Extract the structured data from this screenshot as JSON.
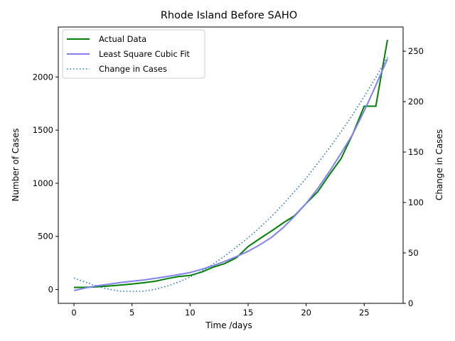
{
  "chart_data": {
    "type": "line",
    "title": "Rhode Island Before SAHO",
    "xlabel": "Time /days",
    "ylabel_left": "Number of Cases",
    "ylabel_right": "Change in Cases",
    "xlim": [
      -1.35,
      28.35
    ],
    "ylim_left": [
      -130,
      2470
    ],
    "ylim_right": [
      0,
      274
    ],
    "xticks": [
      "0",
      "5",
      "10",
      "15",
      "20",
      "25"
    ],
    "yticks_left": [
      "0",
      "500",
      "1000",
      "1500",
      "2000"
    ],
    "yticks_right": [
      "0",
      "50",
      "100",
      "150",
      "200",
      "250"
    ],
    "grid": false,
    "legend_position": "top-left",
    "colors": {
      "actual": "#008000",
      "fit": "#8080f0",
      "change": "#1f77b4"
    },
    "series": [
      {
        "name": "Actual Data",
        "axis": "left",
        "style": "solid",
        "x": [
          0,
          1,
          2,
          3,
          4,
          5,
          6,
          7,
          8,
          9,
          10,
          11,
          12,
          13,
          14,
          15,
          16,
          17,
          18,
          19,
          20,
          21,
          22,
          23,
          24,
          25,
          26,
          27
        ],
        "values": [
          20,
          21,
          25,
          33,
          42,
          52,
          64,
          78,
          102,
          122,
          132,
          165,
          210,
          245,
          300,
          405,
          478,
          550,
          625,
          695,
          810,
          920,
          1080,
          1230,
          1460,
          1725,
          1725,
          2350
        ]
      },
      {
        "name": "Least Square Cubic Fit",
        "axis": "left",
        "style": "solid",
        "x": [
          0,
          1,
          2,
          3,
          4,
          5,
          6,
          7,
          8,
          9,
          10,
          11,
          12,
          13,
          14,
          15,
          16,
          17,
          18,
          19,
          20,
          21,
          22,
          23,
          24,
          25,
          26,
          27
        ],
        "values": [
          -10,
          15,
          35,
          50,
          65,
          78,
          90,
          105,
          122,
          140,
          160,
          190,
          225,
          265,
          310,
          360,
          420,
          490,
          580,
          690,
          810,
          950,
          1110,
          1280,
          1460,
          1680,
          1920,
          2170
        ]
      },
      {
        "name": "Change in Cases",
        "axis": "right",
        "style": "dotted",
        "x": [
          0,
          1,
          2,
          3,
          4,
          5,
          6,
          7,
          8,
          9,
          10,
          11,
          12,
          13,
          14,
          15,
          16,
          17,
          18,
          19,
          20,
          21,
          22,
          23,
          24,
          25,
          26,
          27
        ],
        "values": [
          25,
          21,
          17,
          14,
          12,
          12,
          12,
          14,
          17,
          21,
          26,
          32,
          39,
          47,
          56,
          65,
          75,
          86,
          98,
          111,
          124,
          139,
          154,
          170,
          187,
          205,
          224,
          244
        ]
      }
    ]
  }
}
